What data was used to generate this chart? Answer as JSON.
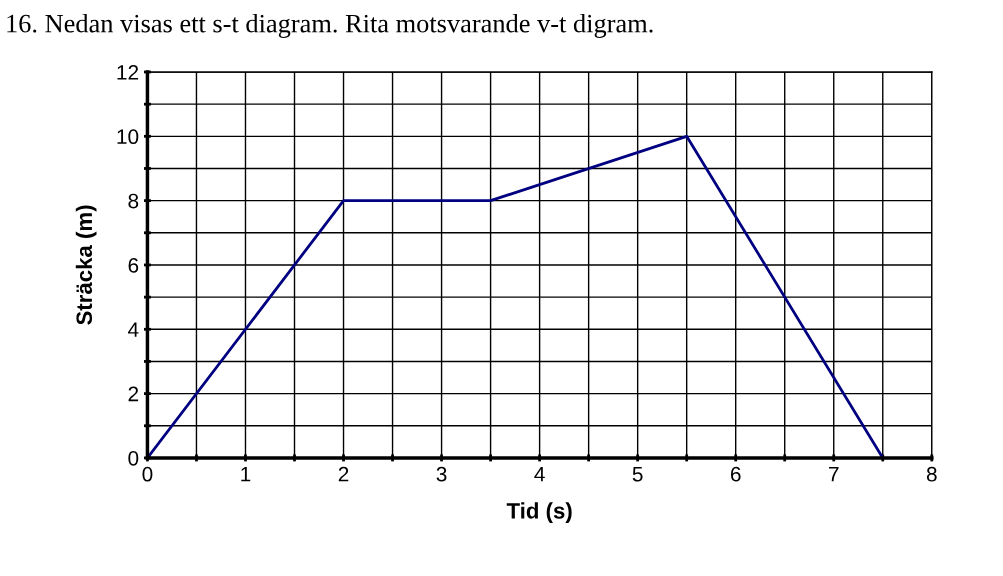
{
  "chart_data": {
    "type": "line",
    "title": "16. Nedan visas ett s-t diagram. Rita motsvarande v-t digram.",
    "xlabel": "Tid (s)",
    "ylabel": "Sträcka (m)",
    "x": [
      0,
      2,
      3.5,
      5.5,
      7.5
    ],
    "series": [
      {
        "color": "#000080",
        "values": [
          0,
          8,
          8,
          10,
          0
        ]
      }
    ],
    "xlim": [
      0,
      8
    ],
    "ylim": [
      0,
      12
    ],
    "xticks": [
      0,
      {
        "value": 0.5,
        "label": null
      },
      1,
      {
        "value": 1.5,
        "label": null
      },
      2,
      {
        "value": 2.5,
        "label": null
      },
      3,
      {
        "value": 3.5,
        "label": null
      },
      4,
      {
        "value": 4.5,
        "label": null
      },
      5,
      {
        "value": 5.5,
        "label": null
      },
      6,
      {
        "value": 6.5,
        "label": null
      },
      7,
      {
        "value": 7.5,
        "label": null
      },
      8
    ],
    "yticks": [
      0,
      {
        "value": 1,
        "label": null
      },
      2,
      {
        "value": 3,
        "label": null
      },
      4,
      {
        "value": 5,
        "label": null
      },
      6,
      {
        "value": 7,
        "label": null
      },
      8,
      {
        "value": 9,
        "label": null
      },
      10,
      {
        "value": 11,
        "label": null
      },
      12
    ],
    "grid": true,
    "marker": "none",
    "line_style": "solid",
    "legend": false
  }
}
